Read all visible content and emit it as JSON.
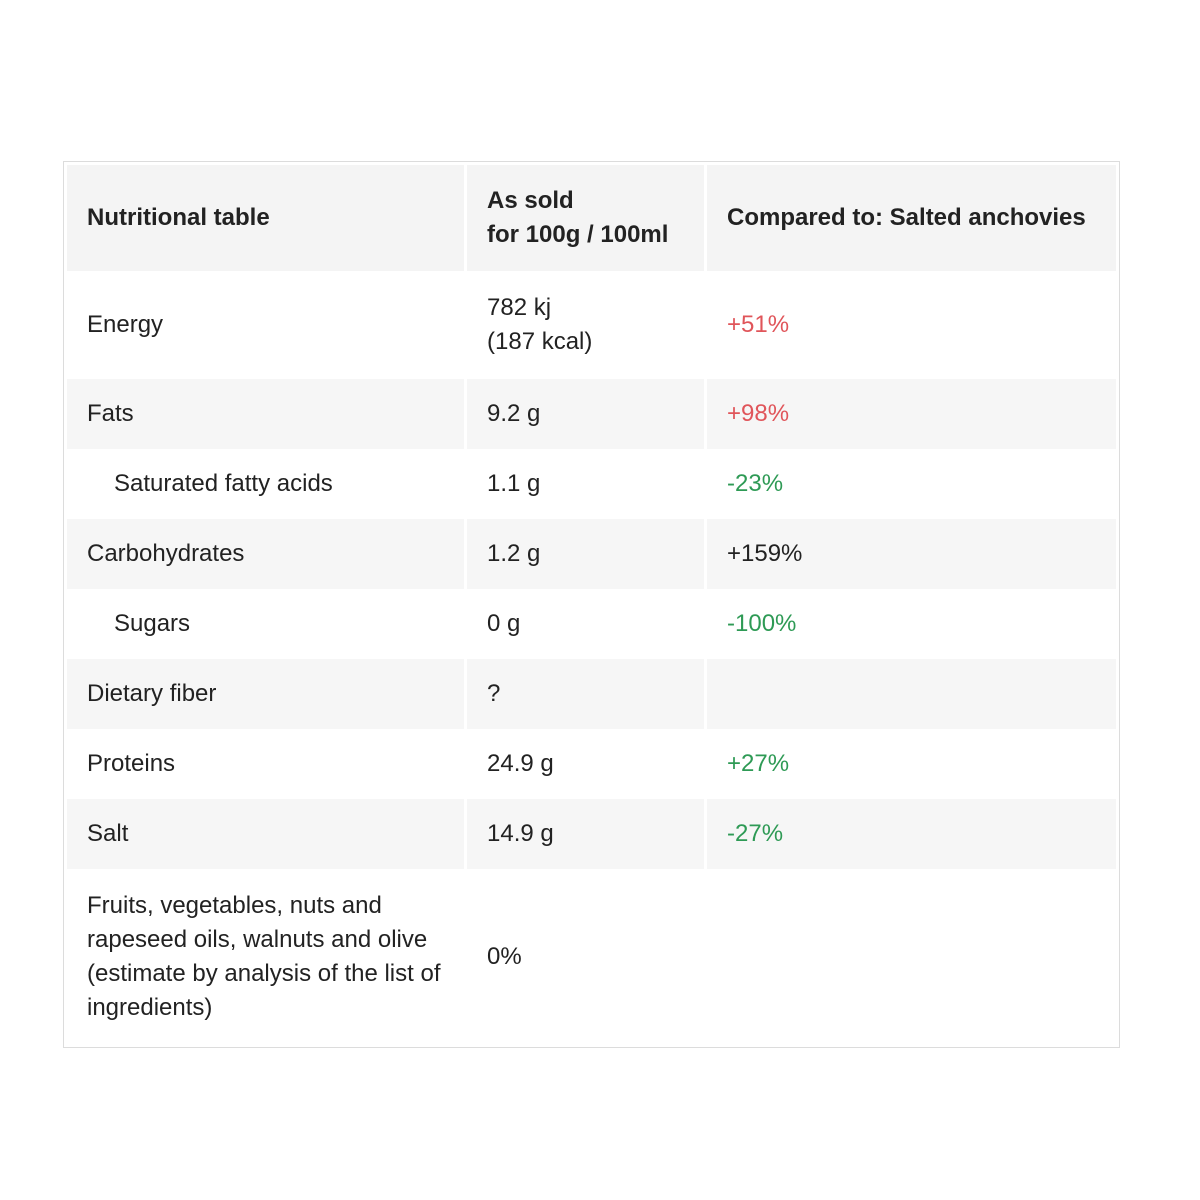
{
  "header": {
    "col1": "Nutritional table",
    "col2_line1": "As sold",
    "col2_line2": "for 100g / 100ml",
    "col3": "Compared to: Salted anchovies"
  },
  "rows": [
    {
      "label": "Energy",
      "value_line1": "782 kj",
      "value_line2": "(187 kcal)",
      "compare": "+51%"
    },
    {
      "label": "Fats",
      "value": "9.2 g",
      "compare": "+98%"
    },
    {
      "label": "Saturated fatty acids",
      "value": "1.1 g",
      "compare": "-23%"
    },
    {
      "label": "Carbohydrates",
      "value": "1.2 g",
      "compare": "+159%"
    },
    {
      "label": "Sugars",
      "value": "0 g",
      "compare": "-100%"
    },
    {
      "label": "Dietary fiber",
      "value": "?",
      "compare": ""
    },
    {
      "label": "Proteins",
      "value": "24.9 g",
      "compare": "+27%"
    },
    {
      "label": "Salt",
      "value": "14.9 g",
      "compare": "-27%"
    },
    {
      "label": "Fruits, vegetables, nuts and rapeseed oils, walnuts and olive (estimate by analysis of the list of ingredients)",
      "value": "0%",
      "compare": ""
    }
  ],
  "colors": {
    "increase": "#e0555a",
    "decrease": "#2e9a55",
    "header_bg": "#f4f4f4",
    "stripe_bg": "#f6f6f6"
  }
}
